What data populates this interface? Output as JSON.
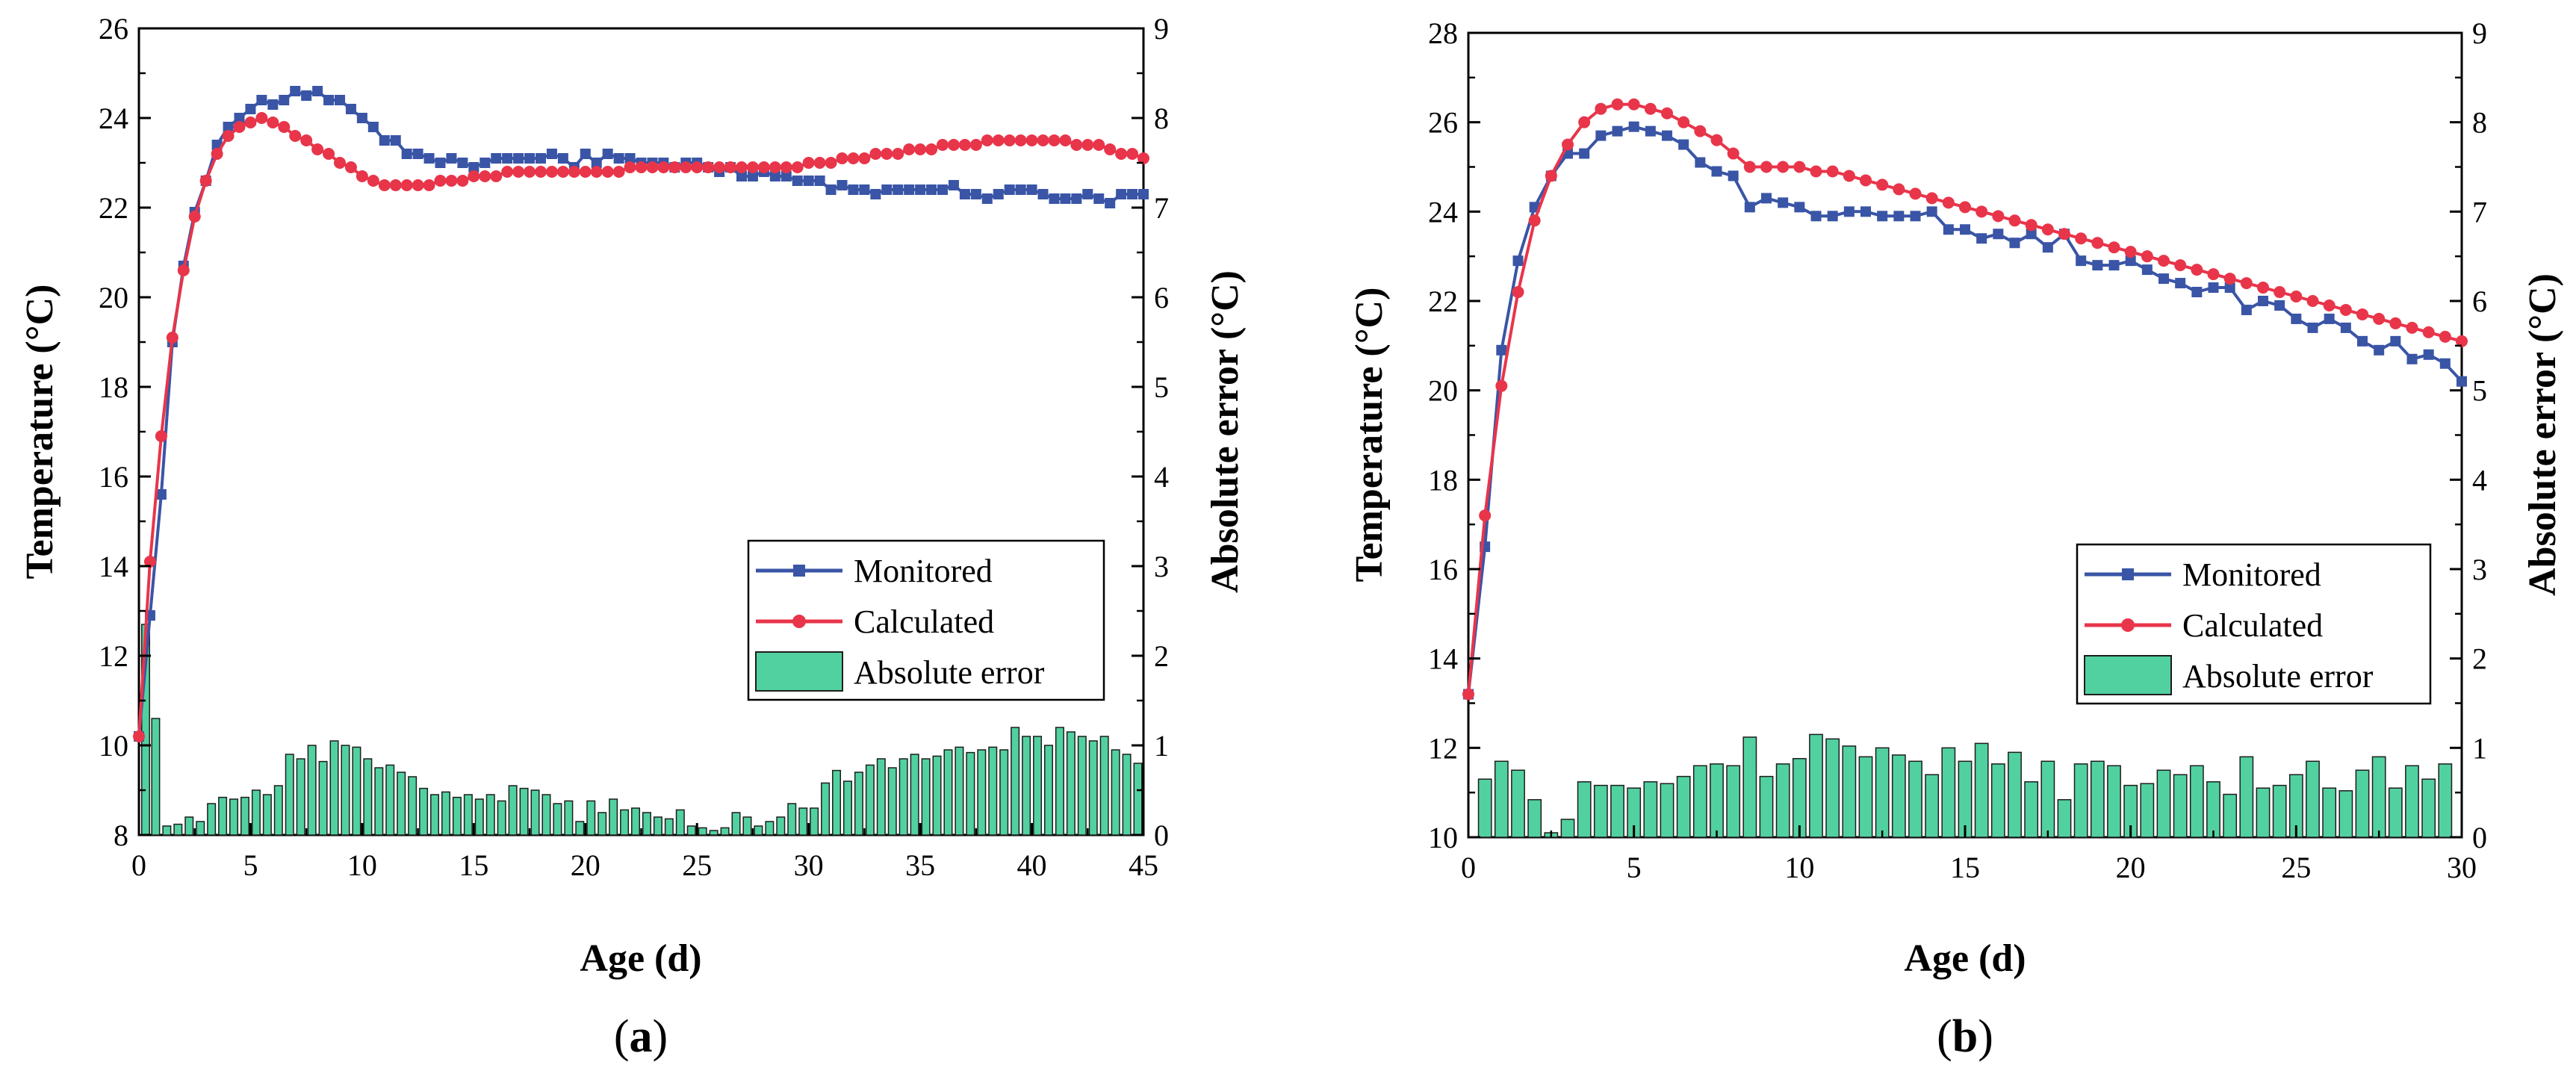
{
  "colors": {
    "monitored": "#3a55a6",
    "calculated": "#e8354a",
    "error_fill": "#52d1a0",
    "error_stroke": "#1d1d1d"
  },
  "chart_data": [
    {
      "type": "line+bar",
      "caption": "(a)",
      "caption_open": "(",
      "caption_letter": "a",
      "caption_close": ")",
      "xlabel": "Age (d)",
      "ylabel": "Temperature (°C)",
      "y2label": "Absolute error (°C)",
      "xlim": [
        0,
        45
      ],
      "ylim": [
        8,
        26
      ],
      "y2lim": [
        0,
        9
      ],
      "xticks": [
        0,
        5,
        10,
        15,
        20,
        25,
        30,
        35,
        40,
        45
      ],
      "yticks": [
        8,
        10,
        12,
        14,
        16,
        18,
        20,
        22,
        24,
        26
      ],
      "y2ticks": [
        0,
        1,
        2,
        3,
        4,
        5,
        6,
        7,
        8,
        9
      ],
      "legend": {
        "position": "bottom-right",
        "entries": [
          "Monitored",
          "Calculated",
          "Absolute error"
        ]
      },
      "series": [
        {
          "name": "Monitored",
          "marker": "square",
          "x": [
            0,
            0.5,
            1,
            1.5,
            2,
            2.5,
            3,
            3.5,
            4,
            4.5,
            5,
            5.5,
            6,
            6.5,
            7,
            7.5,
            8,
            8.5,
            9,
            9.5,
            10,
            10.5,
            11,
            11.5,
            12,
            12.5,
            13,
            13.5,
            14,
            14.5,
            15,
            15.5,
            16,
            16.5,
            17,
            17.5,
            18,
            18.5,
            19,
            19.5,
            20,
            20.5,
            21,
            21.5,
            22,
            22.5,
            23,
            23.5,
            24,
            24.5,
            25,
            25.5,
            26,
            26.5,
            27,
            27.5,
            28,
            28.5,
            29,
            29.5,
            30,
            30.5,
            31,
            31.5,
            32,
            32.5,
            33,
            33.5,
            34,
            34.5,
            35,
            35.5,
            36,
            36.5,
            37,
            37.5,
            38,
            38.5,
            39,
            39.5,
            40,
            40.5,
            41,
            41.5,
            42,
            42.5,
            43,
            43.5,
            44,
            44.5,
            45
          ],
          "y": [
            10.2,
            12.9,
            15.6,
            19.0,
            20.7,
            21.9,
            22.6,
            23.4,
            23.8,
            24.0,
            24.2,
            24.4,
            24.3,
            24.4,
            24.6,
            24.5,
            24.6,
            24.4,
            24.4,
            24.2,
            24.0,
            23.8,
            23.5,
            23.5,
            23.2,
            23.2,
            23.1,
            23.0,
            23.1,
            23.0,
            22.9,
            23.0,
            23.1,
            23.1,
            23.1,
            23.1,
            23.1,
            23.2,
            23.1,
            22.9,
            23.2,
            23.0,
            23.2,
            23.1,
            23.1,
            23.0,
            23.0,
            23.0,
            22.9,
            23.0,
            23.0,
            22.9,
            22.8,
            22.9,
            22.7,
            22.7,
            22.8,
            22.7,
            22.7,
            22.6,
            22.6,
            22.6,
            22.4,
            22.5,
            22.4,
            22.4,
            22.3,
            22.4,
            22.4,
            22.4,
            22.4,
            22.4,
            22.4,
            22.5,
            22.3,
            22.3,
            22.2,
            22.3,
            22.4,
            22.4,
            22.4,
            22.3,
            22.2,
            22.2,
            22.2,
            22.3,
            22.2,
            22.1,
            22.3,
            22.3,
            22.3
          ]
        },
        {
          "name": "Calculated",
          "marker": "circle",
          "x": [
            0,
            0.5,
            1,
            1.5,
            2,
            2.5,
            3,
            3.5,
            4,
            4.5,
            5,
            5.5,
            6,
            6.5,
            7,
            7.5,
            8,
            8.5,
            9,
            9.5,
            10,
            10.5,
            11,
            11.5,
            12,
            12.5,
            13,
            13.5,
            14,
            14.5,
            15,
            15.5,
            16,
            16.5,
            17,
            17.5,
            18,
            18.5,
            19,
            19.5,
            20,
            20.5,
            21,
            21.5,
            22,
            22.5,
            23,
            23.5,
            24,
            24.5,
            25,
            25.5,
            26,
            26.5,
            27,
            27.5,
            28,
            28.5,
            29,
            29.5,
            30,
            30.5,
            31,
            31.5,
            32,
            32.5,
            33,
            33.5,
            34,
            34.5,
            35,
            35.5,
            36,
            36.5,
            37,
            37.5,
            38,
            38.5,
            39,
            39.5,
            40,
            40.5,
            41,
            41.5,
            42,
            42.5,
            43,
            43.5,
            44,
            44.5,
            45
          ],
          "y": [
            10.2,
            14.1,
            16.9,
            19.1,
            20.6,
            21.8,
            22.6,
            23.2,
            23.6,
            23.8,
            23.9,
            24.0,
            23.9,
            23.8,
            23.6,
            23.5,
            23.3,
            23.2,
            23.0,
            22.9,
            22.7,
            22.6,
            22.5,
            22.5,
            22.5,
            22.5,
            22.5,
            22.6,
            22.6,
            22.6,
            22.7,
            22.7,
            22.7,
            22.8,
            22.8,
            22.8,
            22.8,
            22.8,
            22.8,
            22.8,
            22.8,
            22.8,
            22.8,
            22.8,
            22.9,
            22.9,
            22.9,
            22.9,
            22.9,
            22.9,
            22.9,
            22.9,
            22.9,
            22.9,
            22.9,
            22.9,
            22.9,
            22.9,
            22.9,
            22.9,
            23.0,
            23.0,
            23.0,
            23.1,
            23.1,
            23.1,
            23.2,
            23.2,
            23.2,
            23.3,
            23.3,
            23.3,
            23.4,
            23.4,
            23.4,
            23.4,
            23.5,
            23.5,
            23.5,
            23.5,
            23.5,
            23.5,
            23.5,
            23.5,
            23.4,
            23.4,
            23.4,
            23.3,
            23.2,
            23.2,
            23.1
          ]
        },
        {
          "name": "Absolute error",
          "type": "bar",
          "axis": "y2",
          "x": [
            0.3,
            0.75,
            1.25,
            1.75,
            2.25,
            2.75,
            3.25,
            3.75,
            4.25,
            4.75,
            5.25,
            5.75,
            6.25,
            6.75,
            7.25,
            7.75,
            8.25,
            8.75,
            9.25,
            9.75,
            10.25,
            10.75,
            11.25,
            11.75,
            12.25,
            12.75,
            13.25,
            13.75,
            14.25,
            14.75,
            15.25,
            15.75,
            16.25,
            16.75,
            17.25,
            17.75,
            18.25,
            18.75,
            19.25,
            19.75,
            20.25,
            20.75,
            21.25,
            21.75,
            22.25,
            22.75,
            23.25,
            23.75,
            24.25,
            24.75,
            25.25,
            25.75,
            26.25,
            26.75,
            27.25,
            27.75,
            28.25,
            28.75,
            29.25,
            29.75,
            30.25,
            30.75,
            31.25,
            31.75,
            32.25,
            32.75,
            33.25,
            33.75,
            34.25,
            34.75,
            35.25,
            35.75,
            36.25,
            36.75,
            37.25,
            37.75,
            38.25,
            38.75,
            39.25,
            39.75,
            40.25,
            40.75,
            41.25,
            41.75,
            42.25,
            42.75,
            43.25,
            43.75,
            44.25,
            44.75
          ],
          "values": [
            2.35,
            1.3,
            0.1,
            0.12,
            0.2,
            0.15,
            0.35,
            0.42,
            0.4,
            0.42,
            0.5,
            0.45,
            0.55,
            0.9,
            0.85,
            1.0,
            0.82,
            1.05,
            1.0,
            0.98,
            0.85,
            0.75,
            0.78,
            0.7,
            0.65,
            0.52,
            0.45,
            0.48,
            0.42,
            0.45,
            0.4,
            0.45,
            0.38,
            0.55,
            0.52,
            0.5,
            0.45,
            0.35,
            0.38,
            0.15,
            0.38,
            0.25,
            0.4,
            0.28,
            0.3,
            0.25,
            0.2,
            0.18,
            0.28,
            0.1,
            0.08,
            0.05,
            0.08,
            0.25,
            0.2,
            0.1,
            0.15,
            0.2,
            0.35,
            0.3,
            0.3,
            0.58,
            0.72,
            0.6,
            0.7,
            0.78,
            0.85,
            0.75,
            0.85,
            0.9,
            0.85,
            0.88,
            0.95,
            0.98,
            0.92,
            0.95,
            0.98,
            0.95,
            1.2,
            1.1,
            1.1,
            1.0,
            1.2,
            1.15,
            1.1,
            1.05,
            1.1,
            0.95,
            0.9,
            0.8
          ]
        }
      ]
    },
    {
      "type": "line+bar",
      "caption": "(b)",
      "caption_open": "(",
      "caption_letter": "b",
      "caption_close": ")",
      "xlabel": "Age (d)",
      "ylabel": "Temperature (°C)",
      "y2label": "Absolute error (°C)",
      "xlim": [
        0,
        30
      ],
      "ylim": [
        10,
        28
      ],
      "y2lim": [
        0,
        9
      ],
      "xticks": [
        0,
        5,
        10,
        15,
        20,
        25,
        30
      ],
      "yticks": [
        10,
        12,
        14,
        16,
        18,
        20,
        22,
        24,
        26,
        28
      ],
      "y2ticks": [
        0,
        1,
        2,
        3,
        4,
        5,
        6,
        7,
        8,
        9
      ],
      "legend": {
        "position": "bottom-right",
        "entries": [
          "Monitored",
          "Calculated",
          "Absolute error"
        ]
      },
      "series": [
        {
          "name": "Monitored",
          "marker": "square",
          "x": [
            0,
            0.5,
            1,
            1.5,
            2,
            2.5,
            3,
            3.5,
            4,
            4.5,
            5,
            5.5,
            6,
            6.5,
            7,
            7.5,
            8,
            8.5,
            9,
            9.5,
            10,
            10.5,
            11,
            11.5,
            12,
            12.5,
            13,
            13.5,
            14,
            14.5,
            15,
            15.5,
            16,
            16.5,
            17,
            17.5,
            18,
            18.5,
            19,
            19.5,
            20,
            20.5,
            21,
            21.5,
            22,
            22.5,
            23,
            23.5,
            24,
            24.5,
            25,
            25.5,
            26,
            26.5,
            27,
            27.5,
            28,
            28.5,
            29,
            29.5,
            30
          ],
          "y": [
            13.2,
            16.5,
            20.9,
            22.9,
            24.1,
            24.8,
            25.3,
            25.3,
            25.7,
            25.8,
            25.9,
            25.8,
            25.7,
            25.5,
            25.1,
            24.9,
            24.8,
            24.1,
            24.3,
            24.2,
            24.1,
            23.9,
            23.9,
            24.0,
            24.0,
            23.9,
            23.9,
            23.9,
            24.0,
            23.6,
            23.6,
            23.4,
            23.5,
            23.3,
            23.5,
            23.2,
            23.5,
            22.9,
            22.8,
            22.8,
            22.9,
            22.7,
            22.5,
            22.4,
            22.2,
            22.3,
            22.3,
            21.8,
            22.0,
            21.9,
            21.6,
            21.4,
            21.6,
            21.4,
            21.1,
            20.9,
            21.1,
            20.7,
            20.8,
            20.6,
            20.2
          ]
        },
        {
          "name": "Calculated",
          "marker": "circle",
          "x": [
            0,
            0.5,
            1,
            1.5,
            2,
            2.5,
            3,
            3.5,
            4,
            4.5,
            5,
            5.5,
            6,
            6.5,
            7,
            7.5,
            8,
            8.5,
            9,
            9.5,
            10,
            10.5,
            11,
            11.5,
            12,
            12.5,
            13,
            13.5,
            14,
            14.5,
            15,
            15.5,
            16,
            16.5,
            17,
            17.5,
            18,
            18.5,
            19,
            19.5,
            20,
            20.5,
            21,
            21.5,
            22,
            22.5,
            23,
            23.5,
            24,
            24.5,
            25,
            25.5,
            26,
            26.5,
            27,
            27.5,
            28,
            28.5,
            29,
            29.5,
            30
          ],
          "y": [
            13.2,
            17.2,
            20.1,
            22.2,
            23.8,
            24.8,
            25.5,
            26.0,
            26.3,
            26.4,
            26.4,
            26.3,
            26.2,
            26.0,
            25.8,
            25.6,
            25.3,
            25.0,
            25.0,
            25.0,
            25.0,
            24.9,
            24.9,
            24.8,
            24.7,
            24.6,
            24.5,
            24.4,
            24.3,
            24.2,
            24.1,
            24.0,
            23.9,
            23.8,
            23.7,
            23.6,
            23.5,
            23.4,
            23.3,
            23.2,
            23.1,
            23.0,
            22.9,
            22.8,
            22.7,
            22.6,
            22.5,
            22.4,
            22.3,
            22.2,
            22.1,
            22.0,
            21.9,
            21.8,
            21.7,
            21.6,
            21.5,
            21.4,
            21.3,
            21.2,
            21.1
          ]
        },
        {
          "name": "Absolute error",
          "type": "bar",
          "axis": "y2",
          "x": [
            0.5,
            1.0,
            1.5,
            2.0,
            2.5,
            3.0,
            3.5,
            4.0,
            4.5,
            5.0,
            5.5,
            6.0,
            6.5,
            7.0,
            7.5,
            8.0,
            8.5,
            9.0,
            9.5,
            10.0,
            10.5,
            11.0,
            11.5,
            12.0,
            12.5,
            13.0,
            13.5,
            14.0,
            14.5,
            15.0,
            15.5,
            16.0,
            16.5,
            17.0,
            17.5,
            18.0,
            18.5,
            19.0,
            19.5,
            20.0,
            20.5,
            21.0,
            21.5,
            22.0,
            22.5,
            23.0,
            23.5,
            24.0,
            24.5,
            25.0,
            25.5,
            26.0,
            26.5,
            27.0,
            27.5,
            28.0,
            28.5,
            29.0,
            29.5
          ],
          "values": [
            0.65,
            0.85,
            0.75,
            0.42,
            0.05,
            0.2,
            0.62,
            0.58,
            0.58,
            0.55,
            0.62,
            0.6,
            0.68,
            0.8,
            0.82,
            0.8,
            1.12,
            0.68,
            0.82,
            0.88,
            1.15,
            1.1,
            1.02,
            0.9,
            1.0,
            0.92,
            0.85,
            0.7,
            1.0,
            0.85,
            1.05,
            0.82,
            0.95,
            0.62,
            0.85,
            0.42,
            0.82,
            0.85,
            0.8,
            0.58,
            0.6,
            0.75,
            0.7,
            0.8,
            0.62,
            0.48,
            0.9,
            0.55,
            0.58,
            0.7,
            0.85,
            0.55,
            0.52,
            0.75,
            0.9,
            0.55,
            0.8,
            0.65,
            0.82
          ]
        }
      ]
    }
  ]
}
